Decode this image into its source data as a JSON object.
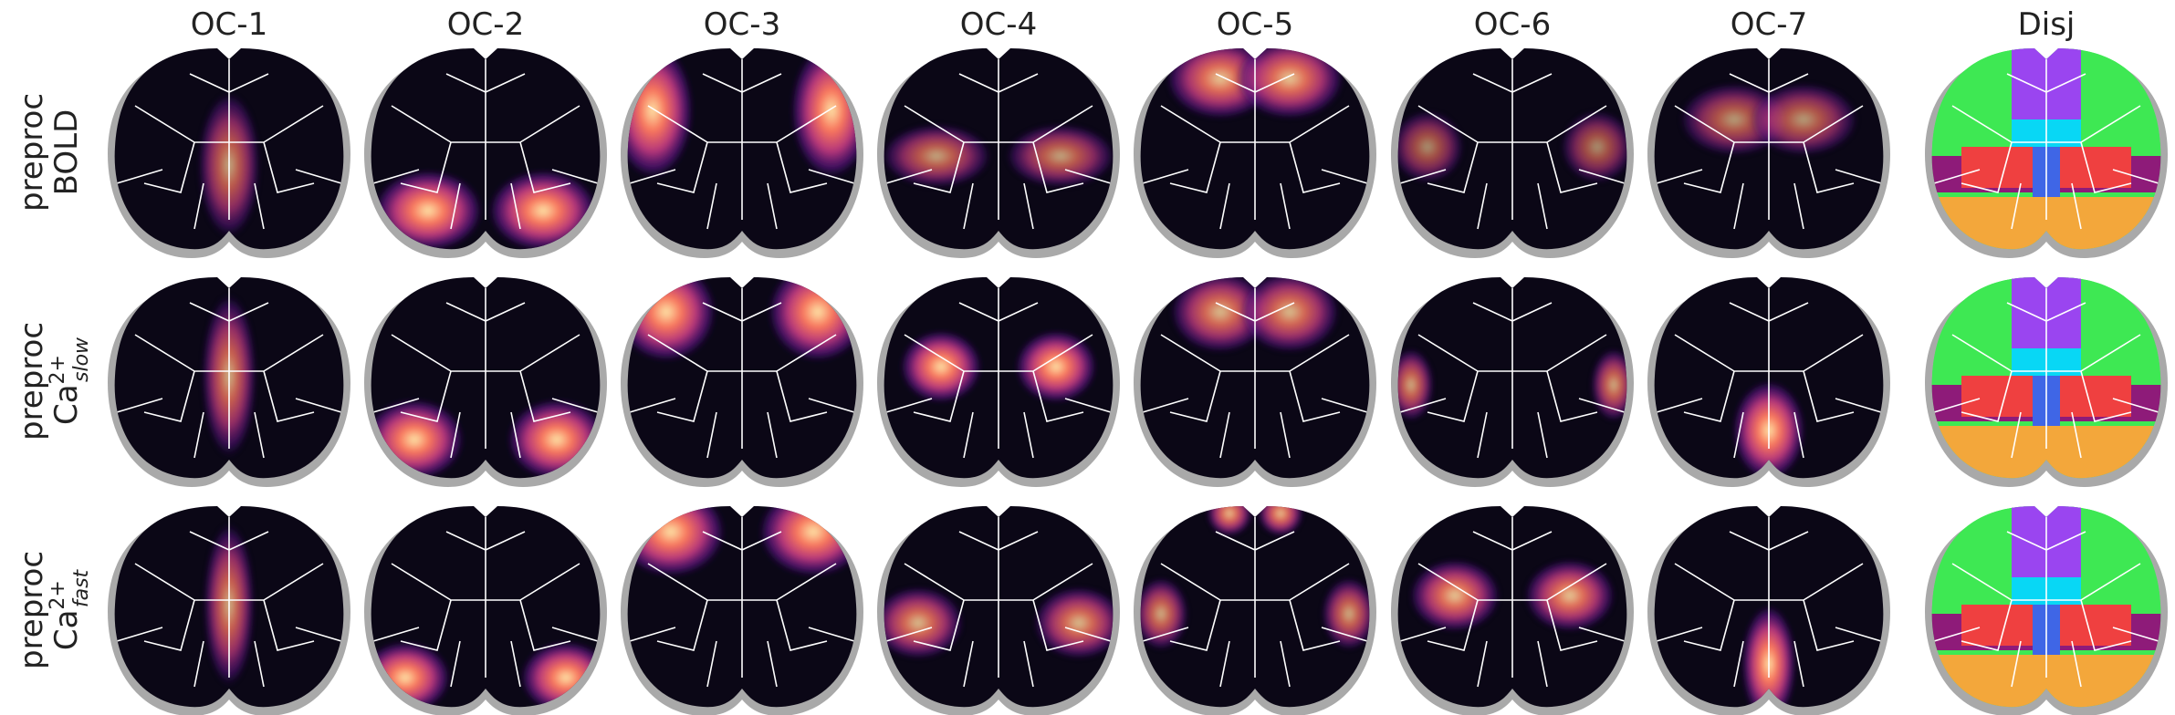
{
  "columns": [
    "OC-1",
    "OC-2",
    "OC-3",
    "OC-4",
    "OC-5",
    "OC-6",
    "OC-7",
    "Disj"
  ],
  "rows": [
    {
      "line1": "preproc",
      "line2": "BOLD"
    },
    {
      "line1": "preproc",
      "base": "Ca",
      "sup": "2+",
      "sub": "slow"
    },
    {
      "line1": "preproc",
      "base": "Ca",
      "sup": "2+",
      "sub": "fast"
    }
  ]
}
